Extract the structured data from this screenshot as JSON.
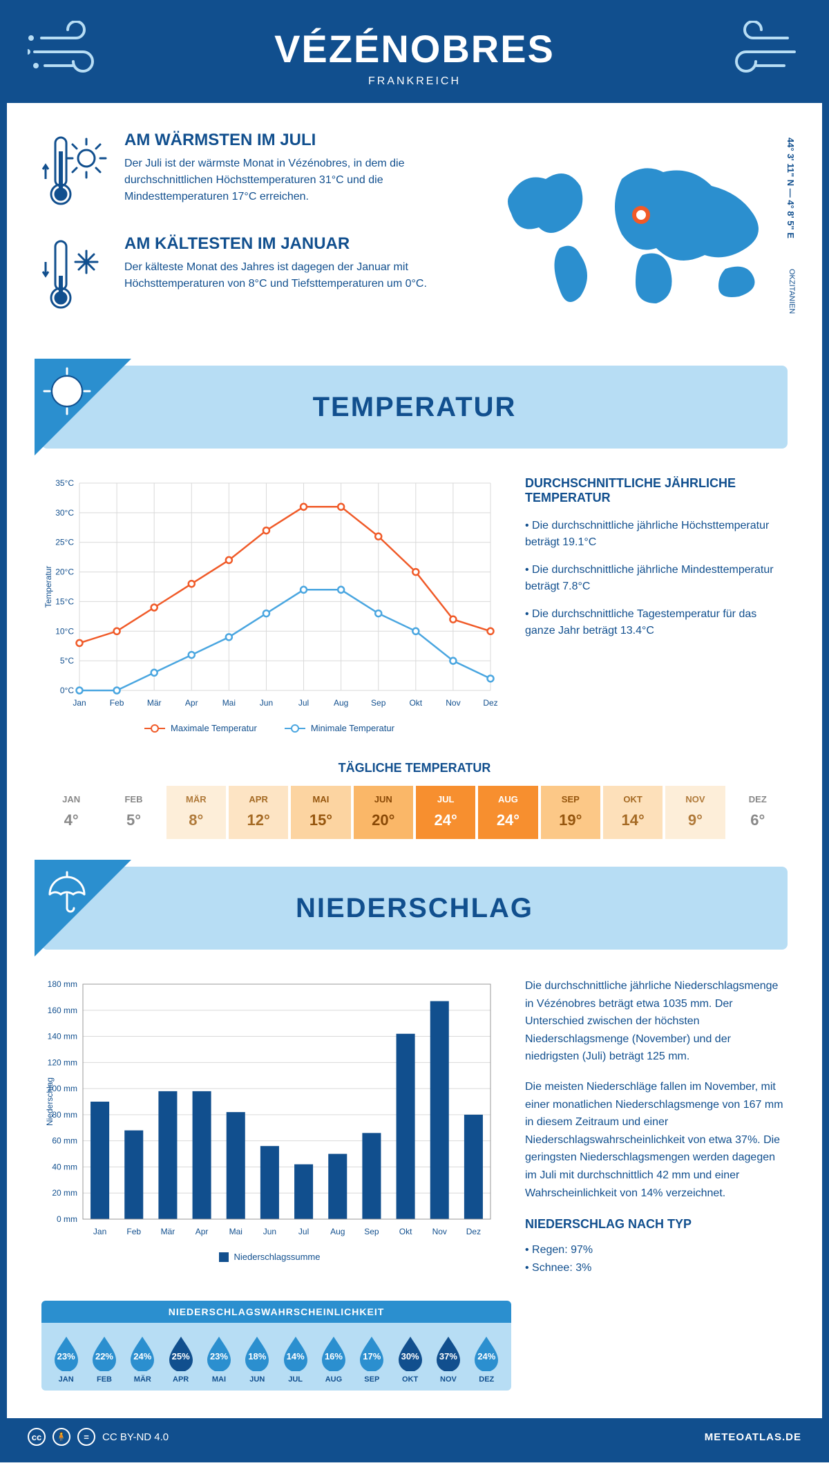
{
  "colors": {
    "primary": "#114f8e",
    "accent": "#2b8fcf",
    "panel": "#b7ddf4",
    "high_line": "#f05a28",
    "low_line": "#4aa6e0",
    "grid": "#d9d9d9",
    "white": "#ffffff"
  },
  "header": {
    "title": "VÉZÉNOBRES",
    "subtitle": "FRANKREICH"
  },
  "intro": {
    "warm": {
      "title": "AM WÄRMSTEN IM JULI",
      "text": "Der Juli ist der wärmste Monat in Vézénobres, in dem die durchschnittlichen Höchsttemperaturen 31°C und die Mindesttemperaturen 17°C erreichen."
    },
    "cold": {
      "title": "AM KÄLTESTEN IM JANUAR",
      "text": "Der kälteste Monat des Jahres ist dagegen der Januar mit Höchsttemperaturen von 8°C und Tiefsttemperaturen um 0°C."
    },
    "coords": "44° 3' 11\" N — 4° 8' 5\" E",
    "region": "OKZITANIEN"
  },
  "temp_section": {
    "title": "TEMPERATUR",
    "chart": {
      "months": [
        "Jan",
        "Feb",
        "Mär",
        "Apr",
        "Mai",
        "Jun",
        "Jul",
        "Aug",
        "Sep",
        "Okt",
        "Nov",
        "Dez"
      ],
      "high": [
        8,
        10,
        14,
        18,
        22,
        27,
        31,
        31,
        26,
        20,
        12,
        10
      ],
      "low": [
        0,
        0,
        3,
        6,
        9,
        13,
        17,
        17,
        13,
        10,
        5,
        2
      ],
      "ylabel": "Temperatur",
      "ylim": [
        0,
        35
      ],
      "ytick_step": 5,
      "legend_high": "Maximale Temperatur",
      "legend_low": "Minimale Temperatur"
    },
    "side": {
      "title": "DURCHSCHNITTLICHE JÄHRLICHE TEMPERATUR",
      "b1": "Die durchschnittliche jährliche Höchsttemperatur beträgt 19.1°C",
      "b2": "Die durchschnittliche jährliche Mindesttemperatur beträgt 7.8°C",
      "b3": "Die durchschnittliche Tagestemperatur für das ganze Jahr beträgt 13.4°C"
    },
    "daily": {
      "title": "TÄGLICHE TEMPERATUR",
      "months": [
        "JAN",
        "FEB",
        "MÄR",
        "APR",
        "MAI",
        "JUN",
        "JUL",
        "AUG",
        "SEP",
        "OKT",
        "NOV",
        "DEZ"
      ],
      "values": [
        "4°",
        "5°",
        "8°",
        "12°",
        "15°",
        "20°",
        "24°",
        "24°",
        "19°",
        "14°",
        "9°",
        "6°"
      ],
      "cell_bg": [
        "#ffffff",
        "#ffffff",
        "#fdeed9",
        "#fde4c4",
        "#fcd4a1",
        "#fab768",
        "#f78f2f",
        "#f78f2f",
        "#fcc887",
        "#fde0ba",
        "#fdeed9",
        "#ffffff"
      ],
      "cell_fg": [
        "#888888",
        "#888888",
        "#b07a3a",
        "#a56a24",
        "#96560e",
        "#8a4906",
        "#ffffff",
        "#ffffff",
        "#96560e",
        "#a56a24",
        "#b07a3a",
        "#888888"
      ]
    }
  },
  "precip_section": {
    "title": "NIEDERSCHLAG",
    "chart": {
      "months": [
        "Jan",
        "Feb",
        "Mär",
        "Apr",
        "Mai",
        "Jun",
        "Jul",
        "Aug",
        "Sep",
        "Okt",
        "Nov",
        "Dez"
      ],
      "values": [
        90,
        68,
        98,
        98,
        82,
        56,
        42,
        50,
        66,
        142,
        167,
        80
      ],
      "ylabel": "Niederschlag",
      "ylim": [
        0,
        180
      ],
      "ytick_step": 20,
      "legend": "Niederschlagssumme",
      "bar_color": "#114f8e"
    },
    "side": {
      "p1": "Die durchschnittliche jährliche Niederschlagsmenge in Vézénobres beträgt etwa 1035 mm. Der Unterschied zwischen der höchsten Niederschlagsmenge (November) und der niedrigsten (Juli) beträgt 125 mm.",
      "p2": "Die meisten Niederschläge fallen im November, mit einer monatlichen Niederschlagsmenge von 167 mm in diesem Zeitraum und einer Niederschlagswahrscheinlichkeit von etwa 37%. Die geringsten Niederschlagsmengen werden dagegen im Juli mit durchschnittlich 42 mm und einer Wahrscheinlichkeit von 14% verzeichnet.",
      "type_title": "NIEDERSCHLAG NACH TYP",
      "t1": "Regen: 97%",
      "t2": "Schnee: 3%"
    },
    "prob": {
      "title": "NIEDERSCHLAGSWAHRSCHEINLICHKEIT",
      "months": [
        "JAN",
        "FEB",
        "MÄR",
        "APR",
        "MAI",
        "JUN",
        "JUL",
        "AUG",
        "SEP",
        "OKT",
        "NOV",
        "DEZ"
      ],
      "values": [
        "23%",
        "22%",
        "24%",
        "25%",
        "23%",
        "18%",
        "14%",
        "16%",
        "17%",
        "30%",
        "37%",
        "24%"
      ],
      "drop_colors": [
        "#2b8fcf",
        "#2b8fcf",
        "#2b8fcf",
        "#114f8e",
        "#2b8fcf",
        "#2b8fcf",
        "#2b8fcf",
        "#2b8fcf",
        "#2b8fcf",
        "#114f8e",
        "#114f8e",
        "#2b8fcf"
      ]
    }
  },
  "footer": {
    "license": "CC BY-ND 4.0",
    "site": "METEOATLAS.DE"
  }
}
